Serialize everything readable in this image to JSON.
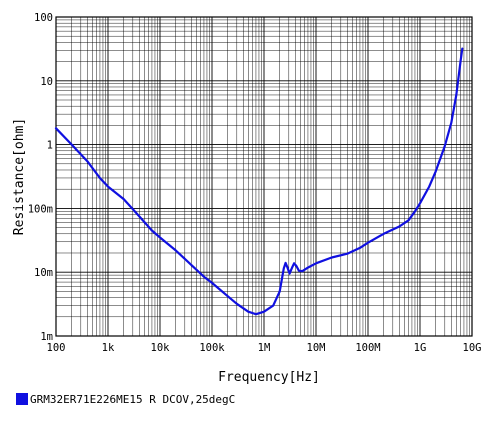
{
  "chart_data": {
    "type": "line",
    "title": "",
    "xlabel": "Frequency[Hz]",
    "ylabel": "Resistance[ohm]",
    "x_scale": "log",
    "y_scale": "log",
    "xlim": [
      100,
      10000000000
    ],
    "ylim": [
      0.001,
      100
    ],
    "grid": true,
    "x_ticks": [
      {
        "value": 100,
        "label": "100"
      },
      {
        "value": 1000,
        "label": "1k"
      },
      {
        "value": 10000,
        "label": "10k"
      },
      {
        "value": 100000,
        "label": "100k"
      },
      {
        "value": 1000000,
        "label": "1M"
      },
      {
        "value": 10000000,
        "label": "10M"
      },
      {
        "value": 100000000,
        "label": "100M"
      },
      {
        "value": 1000000000,
        "label": "1G"
      },
      {
        "value": 10000000000,
        "label": "10G"
      }
    ],
    "y_ticks": [
      {
        "value": 0.001,
        "label": "1m"
      },
      {
        "value": 0.01,
        "label": "10m"
      },
      {
        "value": 0.1,
        "label": "100m"
      },
      {
        "value": 1,
        "label": "1"
      },
      {
        "value": 10,
        "label": "10"
      },
      {
        "value": 100,
        "label": "100"
      }
    ],
    "legend_position": "bottom-left",
    "series": [
      {
        "name": "GRM32ER71E226ME15 R DCOV,25degC",
        "color": "#1010e0",
        "points": [
          [
            100,
            1.8
          ],
          [
            200,
            1.0
          ],
          [
            400,
            0.55
          ],
          [
            700,
            0.3
          ],
          [
            1000,
            0.22
          ],
          [
            2000,
            0.14
          ],
          [
            4000,
            0.075
          ],
          [
            7000,
            0.045
          ],
          [
            10000,
            0.035
          ],
          [
            20000,
            0.022
          ],
          [
            40000,
            0.013
          ],
          [
            70000,
            0.0085
          ],
          [
            100000,
            0.0068
          ],
          [
            200000,
            0.0042
          ],
          [
            300000,
            0.0032
          ],
          [
            500000,
            0.0024
          ],
          [
            700000,
            0.0022
          ],
          [
            1000000,
            0.0024
          ],
          [
            1500000,
            0.003
          ],
          [
            2000000,
            0.005
          ],
          [
            2400000,
            0.0115
          ],
          [
            2600000,
            0.014
          ],
          [
            2800000,
            0.012
          ],
          [
            3100000,
            0.0095
          ],
          [
            3500000,
            0.012
          ],
          [
            3800000,
            0.0138
          ],
          [
            4200000,
            0.0125
          ],
          [
            4700000,
            0.0105
          ],
          [
            5500000,
            0.0104
          ],
          [
            7000000,
            0.0118
          ],
          [
            10000000,
            0.0138
          ],
          [
            20000000,
            0.017
          ],
          [
            40000000,
            0.0195
          ],
          [
            70000000,
            0.024
          ],
          [
            100000000,
            0.029
          ],
          [
            200000000,
            0.04
          ],
          [
            400000000,
            0.052
          ],
          [
            600000000,
            0.065
          ],
          [
            800000000,
            0.09
          ],
          [
            1000000000,
            0.12
          ],
          [
            1500000000,
            0.22
          ],
          [
            2000000000,
            0.38
          ],
          [
            3000000000,
            0.95
          ],
          [
            4000000000,
            2.2
          ],
          [
            5000000000,
            6.0
          ],
          [
            6000000000,
            20
          ],
          [
            6500000000,
            32
          ]
        ]
      }
    ]
  }
}
